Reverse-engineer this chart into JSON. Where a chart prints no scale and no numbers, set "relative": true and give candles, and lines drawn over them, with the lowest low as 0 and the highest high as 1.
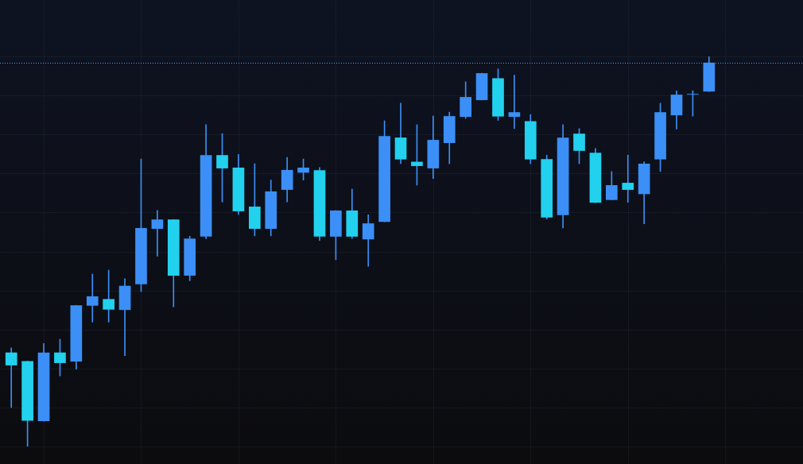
{
  "chart_data": {
    "type": "candlestick",
    "relative": true,
    "grid": true,
    "tick_labels": false,
    "color": "#3b8ff6",
    "categories": [
      null,
      null,
      null,
      null,
      null,
      null,
      null,
      null,
      null,
      null,
      null,
      null,
      null,
      null,
      null,
      null,
      null,
      null,
      null,
      null,
      null,
      null,
      null,
      null,
      null,
      null,
      null,
      null,
      null,
      null,
      null,
      null,
      null,
      null,
      null,
      null,
      null,
      null,
      null,
      null,
      null,
      null,
      null,
      null
    ],
    "ohlc": [
      [
        0.241,
        0.253,
        0.1,
        0.208
      ],
      [
        0.219,
        0.219,
        0,
        0.066
      ],
      [
        0.065,
        0.264,
        0.065,
        0.241
      ],
      [
        0.241,
        0.275,
        0.181,
        0.214
      ],
      [
        0.218,
        0.362,
        0.198,
        0.362
      ],
      [
        0.361,
        0.442,
        0.319,
        0.385
      ],
      [
        0.378,
        0.452,
        0.319,
        0.351
      ],
      [
        0.35,
        0.43,
        0.233,
        0.412
      ],
      [
        0.416,
        0.737,
        0.397,
        0.56
      ],
      [
        0.558,
        0.605,
        0.488,
        0.582
      ],
      [
        0.582,
        0.582,
        0.358,
        0.438
      ],
      [
        0.438,
        0.539,
        0.425,
        0.533
      ],
      [
        0.538,
        0.825,
        0.533,
        0.747
      ],
      [
        0.747,
        0.802,
        0.627,
        0.713
      ],
      [
        0.715,
        0.749,
        0.595,
        0.603
      ],
      [
        0.615,
        0.725,
        0.54,
        0.558
      ],
      [
        0.558,
        0.683,
        0.54,
        0.654
      ],
      [
        0.658,
        0.741,
        0.627,
        0.709
      ],
      [
        0.702,
        0.737,
        0.683,
        0.715
      ],
      [
        0.708,
        0.715,
        0.528,
        0.538
      ],
      [
        0.538,
        0.605,
        0.479,
        0.605
      ],
      [
        0.605,
        0.66,
        0.533,
        0.538
      ],
      [
        0.531,
        0.594,
        0.462,
        0.572
      ],
      [
        0.576,
        0.835,
        0.576,
        0.796
      ],
      [
        0.792,
        0.88,
        0.725,
        0.736
      ],
      [
        0.73,
        0.825,
        0.67,
        0.719
      ],
      [
        0.713,
        0.847,
        0.687,
        0.786
      ],
      [
        0.778,
        0.857,
        0.725,
        0.847
      ],
      [
        0.845,
        0.935,
        0.841,
        0.896
      ],
      [
        0.888,
        0.957,
        0.888,
        0.957
      ],
      [
        0.944,
        0.968,
        0.836,
        0.846
      ],
      [
        0.845,
        0.952,
        0.815,
        0.857
      ],
      [
        0.834,
        0.851,
        0.725,
        0.736
      ],
      [
        0.737,
        0.747,
        0.583,
        0.587
      ],
      [
        0.593,
        0.825,
        0.56,
        0.792
      ],
      [
        0.802,
        0.815,
        0.725,
        0.758
      ],
      [
        0.753,
        0.764,
        0.625,
        0.625
      ],
      [
        0.632,
        0.705,
        0.632,
        0.67
      ],
      [
        0.676,
        0.747,
        0.626,
        0.658
      ],
      [
        0.647,
        0.73,
        0.571,
        0.725
      ],
      [
        0.736,
        0.88,
        0.705,
        0.857
      ],
      [
        0.849,
        0.912,
        0.814,
        0.902
      ],
      [
        0.902,
        0.912,
        0.847,
        0.902
      ],
      [
        0.91,
        1,
        0.91,
        0.984
      ]
    ],
    "colors": [
      "#22d1ee",
      "#22d1ee",
      "#3b8ff6",
      "#22d1ee",
      "#3b8ff6",
      "#3b8ff6",
      "#22d1ee",
      "#3b8ff6",
      "#3b8ff6",
      "#3b8ff6",
      "#22d1ee",
      "#3b8ff6",
      "#3b8ff6",
      "#22d1ee",
      "#22d1ee",
      "#22d1ee",
      "#3b8ff6",
      "#3b8ff6",
      "#3b8ff6",
      "#22d1ee",
      "#3b8ff6",
      "#22d1ee",
      "#3b8ff6",
      "#3b8ff6",
      "#22d1ee",
      "#22d1ee",
      "#3b8ff6",
      "#3b8ff6",
      "#3b8ff6",
      "#3b8ff6",
      "#22d1ee",
      "#3b8ff6",
      "#22d1ee",
      "#22d1ee",
      "#3b8ff6",
      "#22d1ee",
      "#22d1ee",
      "#3b8ff6",
      "#22d1ee",
      "#3b8ff6",
      "#3b8ff6",
      "#3b8ff6",
      "#3b8ff6",
      "#3b8ff6"
    ],
    "ref_lines": [
      {
        "axis": "y",
        "value": 0.984,
        "color": "#4a9fe8",
        "line_style": "dotted"
      }
    ]
  }
}
